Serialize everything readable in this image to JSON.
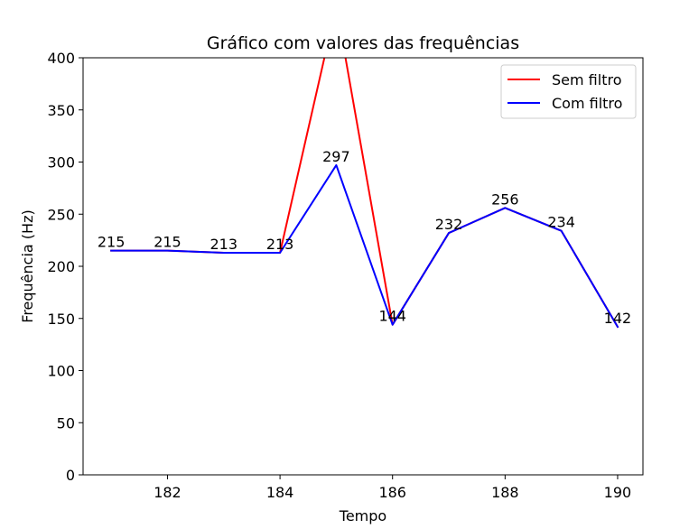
{
  "chart_data": {
    "type": "line",
    "title": "Gráfico com valores das frequências",
    "xlabel": "Tempo",
    "ylabel": "Frequência (Hz)",
    "xlim": [
      180.5,
      190.45
    ],
    "ylim": [
      0,
      400
    ],
    "xticks": [
      182,
      184,
      186,
      188,
      190
    ],
    "yticks": [
      0,
      50,
      100,
      150,
      200,
      250,
      300,
      350,
      400
    ],
    "grid": false,
    "legend": "top-right",
    "x": [
      181,
      182,
      183,
      184,
      185,
      186,
      187,
      188,
      189,
      190
    ],
    "series": [
      {
        "name": "Sem filtro",
        "color": "#ff0000",
        "values": [
          215,
          215,
          213,
          213,
          450,
          144,
          232,
          256,
          234,
          142
        ]
      },
      {
        "name": "Com filtro",
        "color": "#0000ff",
        "values": [
          215,
          215,
          213,
          213,
          297,
          144,
          232,
          256,
          234,
          142
        ]
      }
    ],
    "annotations": [
      {
        "x": 181,
        "y": 215,
        "text": "215"
      },
      {
        "x": 182,
        "y": 215,
        "text": "215"
      },
      {
        "x": 183,
        "y": 213,
        "text": "213"
      },
      {
        "x": 184,
        "y": 213,
        "text": "213"
      },
      {
        "x": 185,
        "y": 297,
        "text": "297"
      },
      {
        "x": 186,
        "y": 144,
        "text": "144"
      },
      {
        "x": 187,
        "y": 232,
        "text": "232"
      },
      {
        "x": 188,
        "y": 256,
        "text": "256"
      },
      {
        "x": 189,
        "y": 234,
        "text": "234"
      },
      {
        "x": 190,
        "y": 142,
        "text": "142"
      }
    ]
  }
}
